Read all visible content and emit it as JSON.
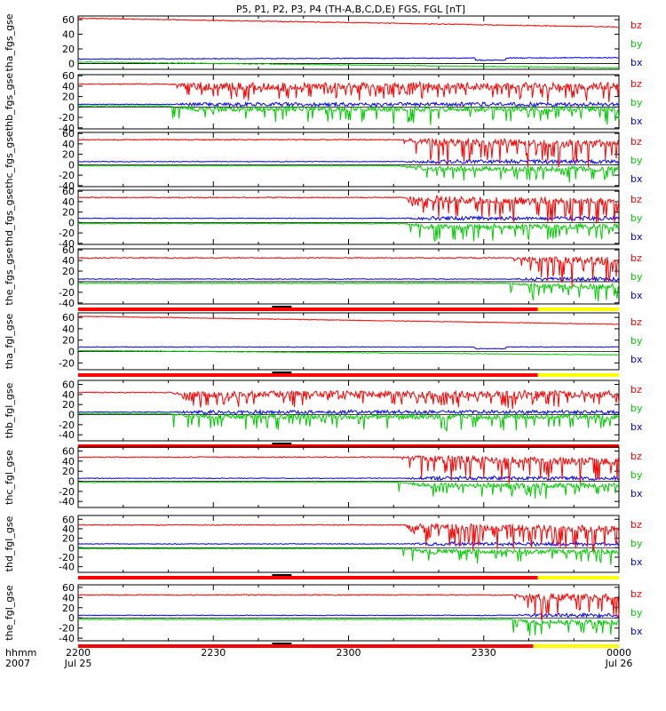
{
  "title": "P5, P1, P2, P3, P4 (TH-A,B,C,D,E) FGS, FGL [nT]",
  "colors": {
    "bz": "#ff0000",
    "by": "#00cc00",
    "bx": "#0000ff",
    "bar_red": "#ff0000",
    "bar_yellow": "#ffff00",
    "bar_black": "#000000"
  },
  "x_axis": {
    "row_label_1": "hhmm",
    "row_label_2": "2007",
    "ticks": [
      {
        "minute": 0,
        "label": "2200",
        "sub": "Jul 25"
      },
      {
        "minute": 30,
        "label": "2230",
        "sub": ""
      },
      {
        "minute": 60,
        "label": "2300",
        "sub": ""
      },
      {
        "minute": 90,
        "label": "2330",
        "sub": ""
      },
      {
        "minute": 120,
        "label": "0000",
        "sub": "Jul 26"
      }
    ],
    "range_minutes": [
      0,
      120
    ]
  },
  "chart_data": [
    {
      "type": "line",
      "name": "tha_fgs_gse",
      "ylabel": "tha_fgs_gse",
      "ylim": [
        -8,
        65
      ],
      "yticks": [
        0,
        20,
        40,
        60
      ],
      "legend": [
        "bz",
        "by",
        "bx"
      ],
      "mode": "quiet",
      "bz_start": 62,
      "bz_end": 50,
      "by_start": 2,
      "by_end": -6,
      "bx_start": 6,
      "bx_end": 8,
      "bar": null
    },
    {
      "type": "line",
      "name": "thb_fgs_gse",
      "ylabel": "thb_fgs_gse",
      "ylim": [
        -42,
        62
      ],
      "yticks": [
        -40,
        -20,
        0,
        20,
        40,
        60
      ],
      "legend": [
        "bz",
        "by",
        "bx"
      ],
      "mode": "early",
      "onset_minute": 20,
      "bz_level": 44,
      "bz_low": 28,
      "by_level": 2,
      "bx_level": 5,
      "bar": null
    },
    {
      "type": "line",
      "name": "thc_fgs_gse",
      "ylabel": "thc_fgs_gse",
      "ylim": [
        -42,
        62
      ],
      "yticks": [
        -40,
        -20,
        0,
        20,
        40,
        60
      ],
      "legend": [
        "bz",
        "by",
        "bx"
      ],
      "mode": "late",
      "onset_minute": 71,
      "bz_level": 48,
      "bz_low": 20,
      "by_level": -2,
      "bx_level": 6,
      "bar": null
    },
    {
      "type": "line",
      "name": "thd_fgs_gse",
      "ylabel": "thd_fgs_gse",
      "ylim": [
        -42,
        62
      ],
      "yticks": [
        -40,
        -20,
        0,
        20,
        40,
        60
      ],
      "legend": [
        "bz",
        "by",
        "bx"
      ],
      "mode": "late",
      "onset_minute": 72,
      "bz_level": 48,
      "bz_low": 18,
      "by_level": -2,
      "bx_level": 8,
      "bar": null
    },
    {
      "type": "line",
      "name": "the_fgs_gse",
      "ylabel": "the_fgs_gse",
      "ylim": [
        -42,
        62
      ],
      "yticks": [
        -40,
        -20,
        0,
        20,
        40,
        60
      ],
      "legend": [
        "bz",
        "by",
        "bx"
      ],
      "mode": "late",
      "onset_minute": 96,
      "bz_level": 45,
      "bz_low": 15,
      "by_level": -3,
      "bx_level": 5,
      "bar": {
        "red_end_minute": 102,
        "marker_minute": 45
      }
    },
    {
      "type": "line",
      "name": "tha_fgl_gse",
      "ylabel": "tha_fgl_gse",
      "ylim": [
        -32,
        68
      ],
      "yticks": [
        -20,
        0,
        20,
        40,
        60
      ],
      "legend": [
        "bz",
        "by",
        "bx"
      ],
      "mode": "quiet",
      "bz_start": 62,
      "bz_end": 48,
      "by_start": 2,
      "by_end": -6,
      "bx_start": 8,
      "bx_end": 8,
      "bar": {
        "red_end_minute": 102,
        "marker_minute": 45
      }
    },
    {
      "type": "line",
      "name": "thb_fgl_gse",
      "ylabel": "thb_fgl_gse",
      "ylim": [
        -52,
        68
      ],
      "yticks": [
        -40,
        -20,
        0,
        20,
        40,
        60
      ],
      "legend": [
        "bz",
        "by",
        "bx"
      ],
      "mode": "early",
      "onset_minute": 20,
      "bz_level": 44,
      "bz_low": 28,
      "by_level": 2,
      "bx_level": 5,
      "bar": {
        "red_end_minute": 120,
        "marker_minute": 45
      }
    },
    {
      "type": "line",
      "name": "thc_fgl_gse",
      "ylabel": "thc_fgl_gse",
      "ylim": [
        -52,
        68
      ],
      "yticks": [
        -40,
        -20,
        0,
        20,
        40,
        60
      ],
      "legend": [
        "bz",
        "by",
        "bx"
      ],
      "mode": "late",
      "onset_minute": 71,
      "bz_level": 48,
      "bz_low": 20,
      "by_level": -2,
      "bx_level": 6,
      "bar": null
    },
    {
      "type": "line",
      "name": "thd_fgl_gse",
      "ylabel": "thd_fgl_gse",
      "ylim": [
        -52,
        68
      ],
      "yticks": [
        -40,
        -20,
        0,
        20,
        40,
        60
      ],
      "legend": [
        "bz",
        "by",
        "bx"
      ],
      "mode": "late",
      "onset_minute": 72,
      "bz_level": 48,
      "bz_low": 18,
      "by_level": -2,
      "bx_level": 8,
      "bar": {
        "red_end_minute": 102,
        "marker_minute": 45
      }
    },
    {
      "type": "line",
      "name": "the_fgl_gse",
      "ylabel": "the_fgl_gse",
      "ylim": [
        -45,
        65
      ],
      "yticks": [
        -40,
        -20,
        0,
        20,
        40,
        60
      ],
      "legend": [
        "bz",
        "by",
        "bx"
      ],
      "mode": "late",
      "onset_minute": 96,
      "bz_level": 45,
      "bz_low": 15,
      "by_level": -3,
      "bx_level": 5,
      "bar": {
        "red_end_minute": 101,
        "marker_minute": 45
      }
    }
  ]
}
